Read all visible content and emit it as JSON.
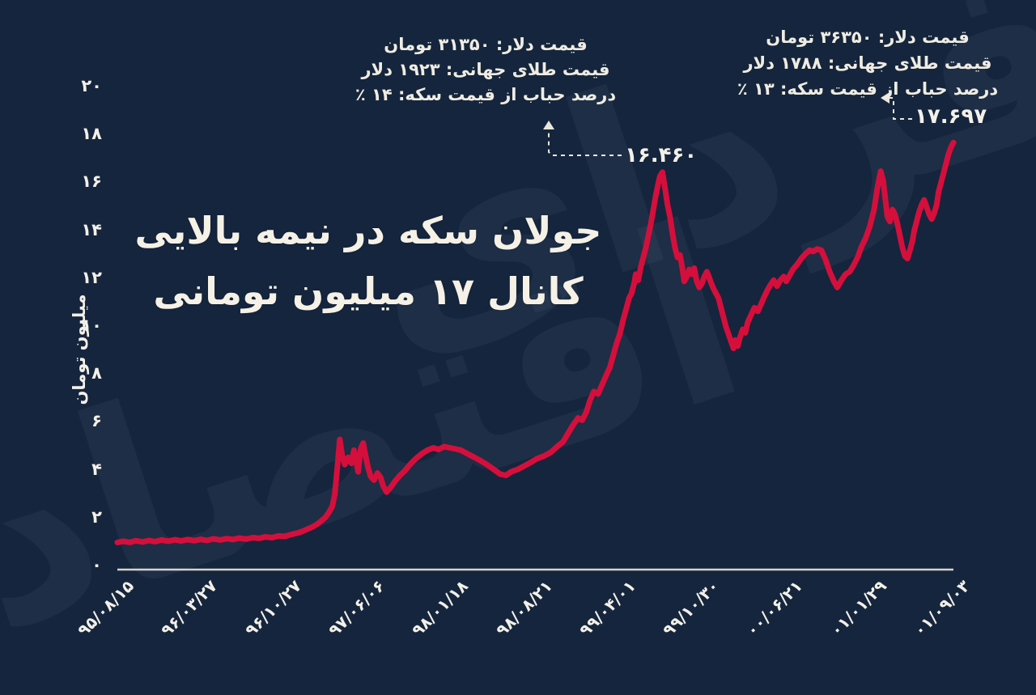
{
  "colors": {
    "background": "#15253D",
    "line": "#D40F3C",
    "text": "#F5F1E6",
    "axis": "#E9E6DC",
    "watermark": "#BDD0EC"
  },
  "title": {
    "line1": "جولان سکه در نیمه بالایی",
    "line2": "کانال ۱۷ میلیون تومانی"
  },
  "watermark": {
    "word1": "فردای",
    "word2": "اقتصاد"
  },
  "annotations": {
    "left": {
      "lines": [
        "قیمت دلار: ۳۱۳۵۰ تومان",
        "قیمت طلای جهانی: ۱۹۲۳ دلار",
        "درصد حباب از قیمت سکه: ۱۴ ٪"
      ],
      "peak_label": "۱۶.۴۶۰",
      "peak_value": 16.46
    },
    "right": {
      "lines": [
        "قیمت دلار: ۳۶۳۵۰ تومان",
        "قیمت طلای جهانی: ۱۷۸۸ دلار",
        "درصد حباب از قیمت سکه: ۱۳ ٪"
      ],
      "peak_label": "۱۷.۶۹۷",
      "peak_value": 17.697
    }
  },
  "chart_data": {
    "type": "line",
    "title": "جولان سکه در نیمه بالایی کانال ۱۷ میلیون تومانی",
    "xlabel": "",
    "ylabel": "میلیون تومان",
    "ylim": [
      0,
      20
    ],
    "grid": false,
    "y_ticks": [
      0,
      2,
      4,
      6,
      8,
      10,
      12,
      14,
      16,
      18,
      20
    ],
    "y_tick_labels_fa": [
      "۰",
      "۲",
      "۴",
      "۶",
      "۸",
      "۱۰",
      "۱۲",
      "۱۴",
      "۱۶",
      "۱۸",
      "۲۰"
    ],
    "x_tick_labels": [
      "۹۵/۰۸/۱۵",
      "۹۶/۰۳/۲۷",
      "۹۶/۱۰/۲۷",
      "۹۷/۰۶/۰۶",
      "۹۸/۰۱/۱۸",
      "۹۸/۰۸/۲۱",
      "۹۹/۰۴/۰۱",
      "۹۹/۱۰/۳۰",
      "۰۰/۰۶/۲۱",
      "۰۱/۰۱/۲۹",
      "۰۱/۰۹/۰۳"
    ],
    "annotated_points": [
      {
        "label": "۱۶.۴۶۰",
        "value": 16.46
      },
      {
        "label": "۱۷.۶۹۷",
        "value": 17.697
      }
    ],
    "series": [
      {
        "name": "price",
        "points": [
          [
            0,
            1.0
          ],
          [
            0.007,
            1.05
          ],
          [
            0.015,
            1.0
          ],
          [
            0.022,
            1.07
          ],
          [
            0.03,
            1.02
          ],
          [
            0.038,
            1.08
          ],
          [
            0.045,
            1.03
          ],
          [
            0.053,
            1.1
          ],
          [
            0.061,
            1.05
          ],
          [
            0.069,
            1.11
          ],
          [
            0.076,
            1.06
          ],
          [
            0.084,
            1.12
          ],
          [
            0.092,
            1.07
          ],
          [
            0.1,
            1.13
          ],
          [
            0.107,
            1.08
          ],
          [
            0.115,
            1.15
          ],
          [
            0.123,
            1.1
          ],
          [
            0.131,
            1.16
          ],
          [
            0.138,
            1.12
          ],
          [
            0.146,
            1.18
          ],
          [
            0.154,
            1.14
          ],
          [
            0.162,
            1.2
          ],
          [
            0.169,
            1.17
          ],
          [
            0.177,
            1.23
          ],
          [
            0.185,
            1.2
          ],
          [
            0.193,
            1.27
          ],
          [
            0.2,
            1.25
          ],
          [
            0.208,
            1.33
          ],
          [
            0.216,
            1.4
          ],
          [
            0.222,
            1.47
          ],
          [
            0.227,
            1.55
          ],
          [
            0.233,
            1.64
          ],
          [
            0.239,
            1.76
          ],
          [
            0.244,
            1.9
          ],
          [
            0.249,
            2.05
          ],
          [
            0.253,
            2.25
          ],
          [
            0.257,
            2.5
          ],
          [
            0.26,
            3.0
          ],
          [
            0.263,
            4.1
          ],
          [
            0.266,
            5.3
          ],
          [
            0.269,
            4.6
          ],
          [
            0.272,
            4.25
          ],
          [
            0.276,
            4.55
          ],
          [
            0.28,
            4.3
          ],
          [
            0.283,
            4.85
          ],
          [
            0.286,
            4.35
          ],
          [
            0.288,
            3.95
          ],
          [
            0.291,
            4.9
          ],
          [
            0.294,
            5.15
          ],
          [
            0.297,
            4.6
          ],
          [
            0.3,
            4.1
          ],
          [
            0.303,
            3.75
          ],
          [
            0.307,
            3.6
          ],
          [
            0.311,
            3.9
          ],
          [
            0.315,
            3.7
          ],
          [
            0.318,
            3.35
          ],
          [
            0.322,
            3.1
          ],
          [
            0.327,
            3.3
          ],
          [
            0.332,
            3.55
          ],
          [
            0.338,
            3.8
          ],
          [
            0.344,
            4.0
          ],
          [
            0.35,
            4.25
          ],
          [
            0.357,
            4.5
          ],
          [
            0.364,
            4.7
          ],
          [
            0.371,
            4.85
          ],
          [
            0.378,
            4.95
          ],
          [
            0.384,
            4.88
          ],
          [
            0.391,
            5.0
          ],
          [
            0.398,
            4.95
          ],
          [
            0.405,
            4.9
          ],
          [
            0.411,
            4.85
          ],
          [
            0.419,
            4.7
          ],
          [
            0.427,
            4.55
          ],
          [
            0.435,
            4.4
          ],
          [
            0.442,
            4.25
          ],
          [
            0.45,
            4.05
          ],
          [
            0.458,
            3.85
          ],
          [
            0.465,
            3.8
          ],
          [
            0.471,
            3.95
          ],
          [
            0.479,
            4.05
          ],
          [
            0.487,
            4.2
          ],
          [
            0.495,
            4.35
          ],
          [
            0.502,
            4.5
          ],
          [
            0.51,
            4.6
          ],
          [
            0.518,
            4.75
          ],
          [
            0.526,
            5.0
          ],
          [
            0.533,
            5.2
          ],
          [
            0.539,
            5.55
          ],
          [
            0.545,
            5.9
          ],
          [
            0.551,
            6.2
          ],
          [
            0.556,
            6.1
          ],
          [
            0.561,
            6.45
          ],
          [
            0.565,
            6.9
          ],
          [
            0.57,
            7.3
          ],
          [
            0.575,
            7.2
          ],
          [
            0.58,
            7.6
          ],
          [
            0.585,
            8.0
          ],
          [
            0.589,
            8.3
          ],
          [
            0.593,
            8.8
          ],
          [
            0.597,
            9.3
          ],
          [
            0.601,
            9.7
          ],
          [
            0.605,
            10.3
          ],
          [
            0.609,
            10.8
          ],
          [
            0.612,
            11.2
          ],
          [
            0.615,
            11.4
          ],
          [
            0.618,
            11.8
          ],
          [
            0.62,
            12.2
          ],
          [
            0.623,
            11.95
          ],
          [
            0.626,
            12.5
          ],
          [
            0.629,
            12.9
          ],
          [
            0.632,
            13.3
          ],
          [
            0.635,
            13.8
          ],
          [
            0.638,
            14.3
          ],
          [
            0.641,
            14.9
          ],
          [
            0.644,
            15.5
          ],
          [
            0.647,
            16.0
          ],
          [
            0.649,
            16.3
          ],
          [
            0.652,
            16.46
          ],
          [
            0.655,
            15.8
          ],
          [
            0.658,
            15.1
          ],
          [
            0.661,
            14.6
          ],
          [
            0.664,
            13.9
          ],
          [
            0.667,
            13.3
          ],
          [
            0.67,
            12.9
          ],
          [
            0.673,
            13.0
          ],
          [
            0.676,
            12.4
          ],
          [
            0.678,
            11.9
          ],
          [
            0.681,
            12.1
          ],
          [
            0.684,
            12.4
          ],
          [
            0.687,
            12.2
          ],
          [
            0.69,
            12.45
          ],
          [
            0.693,
            11.9
          ],
          [
            0.696,
            11.65
          ],
          [
            0.699,
            11.8
          ],
          [
            0.702,
            12.1
          ],
          [
            0.705,
            12.3
          ],
          [
            0.707,
            12.15
          ],
          [
            0.71,
            11.85
          ],
          [
            0.713,
            11.6
          ],
          [
            0.716,
            11.4
          ],
          [
            0.719,
            11.2
          ],
          [
            0.722,
            10.8
          ],
          [
            0.725,
            10.4
          ],
          [
            0.728,
            10.0
          ],
          [
            0.731,
            9.7
          ],
          [
            0.734,
            9.4
          ],
          [
            0.737,
            9.1
          ],
          [
            0.739,
            9.45
          ],
          [
            0.742,
            9.2
          ],
          [
            0.745,
            9.6
          ],
          [
            0.748,
            9.9
          ],
          [
            0.751,
            9.75
          ],
          [
            0.754,
            10.2
          ],
          [
            0.758,
            10.5
          ],
          [
            0.762,
            10.8
          ],
          [
            0.766,
            10.65
          ],
          [
            0.77,
            10.95
          ],
          [
            0.773,
            11.2
          ],
          [
            0.777,
            11.5
          ],
          [
            0.781,
            11.75
          ],
          [
            0.785,
            11.95
          ],
          [
            0.789,
            11.7
          ],
          [
            0.793,
            11.95
          ],
          [
            0.797,
            12.1
          ],
          [
            0.8,
            11.9
          ],
          [
            0.804,
            12.15
          ],
          [
            0.808,
            12.4
          ],
          [
            0.813,
            12.6
          ],
          [
            0.818,
            12.85
          ],
          [
            0.823,
            13.05
          ],
          [
            0.828,
            13.2
          ],
          [
            0.832,
            13.15
          ],
          [
            0.837,
            13.25
          ],
          [
            0.842,
            13.2
          ],
          [
            0.847,
            12.8
          ],
          [
            0.852,
            12.3
          ],
          [
            0.857,
            11.9
          ],
          [
            0.861,
            11.65
          ],
          [
            0.866,
            11.95
          ],
          [
            0.871,
            12.2
          ],
          [
            0.876,
            12.3
          ],
          [
            0.881,
            12.6
          ],
          [
            0.886,
            12.95
          ],
          [
            0.89,
            13.35
          ],
          [
            0.895,
            13.7
          ],
          [
            0.9,
            14.2
          ],
          [
            0.905,
            14.9
          ],
          [
            0.909,
            15.8
          ],
          [
            0.913,
            16.5
          ],
          [
            0.916,
            16.1
          ],
          [
            0.919,
            15.2
          ],
          [
            0.921,
            14.6
          ],
          [
            0.924,
            14.4
          ],
          [
            0.927,
            14.9
          ],
          [
            0.93,
            14.7
          ],
          [
            0.933,
            14.3
          ],
          [
            0.936,
            13.8
          ],
          [
            0.939,
            13.3
          ],
          [
            0.942,
            12.95
          ],
          [
            0.945,
            12.85
          ],
          [
            0.948,
            13.2
          ],
          [
            0.951,
            13.6
          ],
          [
            0.953,
            14.0
          ],
          [
            0.956,
            14.4
          ],
          [
            0.959,
            14.8
          ],
          [
            0.962,
            15.1
          ],
          [
            0.965,
            15.3
          ],
          [
            0.968,
            15.0
          ],
          [
            0.971,
            14.7
          ],
          [
            0.974,
            14.5
          ],
          [
            0.977,
            14.75
          ],
          [
            0.98,
            15.1
          ],
          [
            0.982,
            15.6
          ],
          [
            0.985,
            16.0
          ],
          [
            0.988,
            16.4
          ],
          [
            0.991,
            16.8
          ],
          [
            0.994,
            17.2
          ],
          [
            0.997,
            17.5
          ],
          [
            1,
            17.697
          ]
        ]
      }
    ]
  }
}
